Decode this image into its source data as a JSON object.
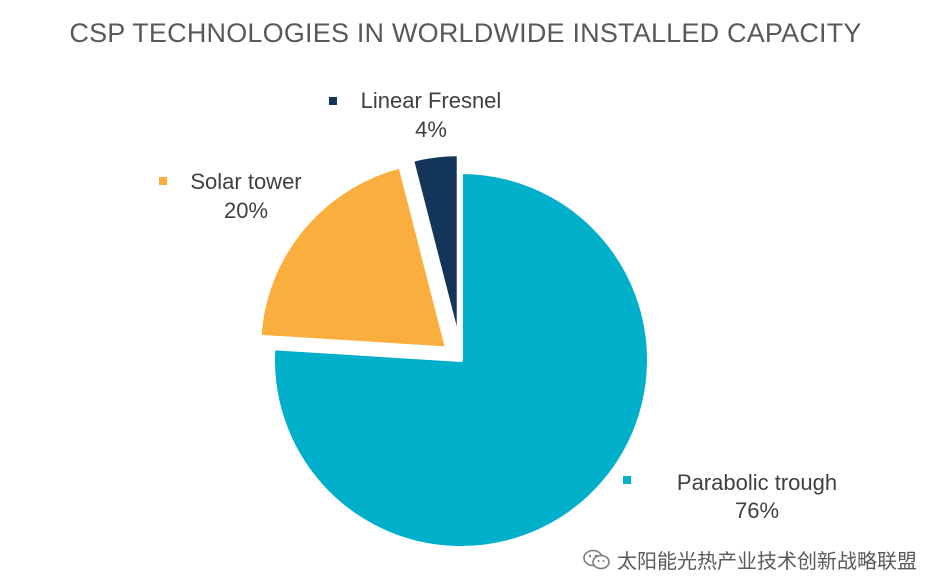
{
  "chart_data": {
    "type": "pie",
    "title": "CSP TECHNOLOGIES IN WORLDWIDE INSTALLED CAPACITY",
    "slices": [
      {
        "label": "Parabolic trough",
        "value": 76,
        "value_label": "76%",
        "color": "#00B0CA",
        "exploded": false
      },
      {
        "label": "Solar tower",
        "value": 20,
        "value_label": "20%",
        "color": "#F9AE3D",
        "exploded": true
      },
      {
        "label": "Linear Fresnel",
        "value": 4,
        "value_label": "4%",
        "color": "#14355A",
        "exploded": true
      }
    ]
  },
  "watermark": {
    "text": "太阳能光热产业技术创新战略联盟",
    "icon": "wechat-icon"
  }
}
